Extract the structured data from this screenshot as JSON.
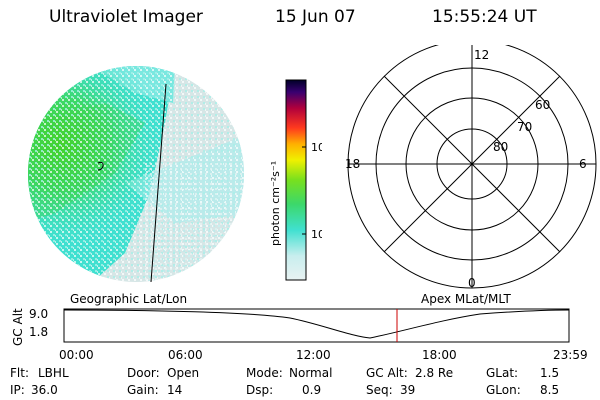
{
  "header": {
    "title": "Ultraviolet Imager",
    "date": "15 Jun 07",
    "time": "15:55:24 UT"
  },
  "colorbar": {
    "axis_label": "photon cm⁻²s⁻¹",
    "ticks": [
      "100",
      "10"
    ],
    "scale": "log"
  },
  "polar_plot": {
    "mlt_labels": [
      "12",
      "18",
      "6",
      "0"
    ],
    "lat_labels": [
      "60",
      "70",
      "80"
    ]
  },
  "orbit_panel": {
    "left_label": "Geographic Lat/Lon",
    "right_label": "Apex MLat/MLT",
    "y_axis_label": "GC Alt",
    "y_ticks": [
      "9.0",
      "1.8"
    ],
    "x_ticks": [
      "00:00",
      "06:00",
      "12:00",
      "18:00",
      "23:59"
    ],
    "marker_color": "#cc0000"
  },
  "status": {
    "filter_label": "Flt:",
    "filter_value": "LBHL",
    "ip_label": "IP:",
    "ip_value": "36.0",
    "door_label": "Door:",
    "door_value": "Open",
    "gain_label": "Gain:",
    "gain_value": "14",
    "mode_label": "Mode:",
    "mode_value": "Normal",
    "dsp_label": "Dsp:",
    "dsp_value": "0.9",
    "gcalt_label": "GC Alt:",
    "gcalt_value": "2.8 Re",
    "seq_label": "Seq:",
    "seq_value": "39",
    "glat_label": "GLat:",
    "glat_value": "1.5",
    "glon_label": "GLon:",
    "glon_value": "8.5"
  },
  "colors": {
    "aurora_green": "#3ccc28",
    "aurora_cyan": "#40e0d0",
    "dayglow_gray": "#d8e4e4"
  }
}
